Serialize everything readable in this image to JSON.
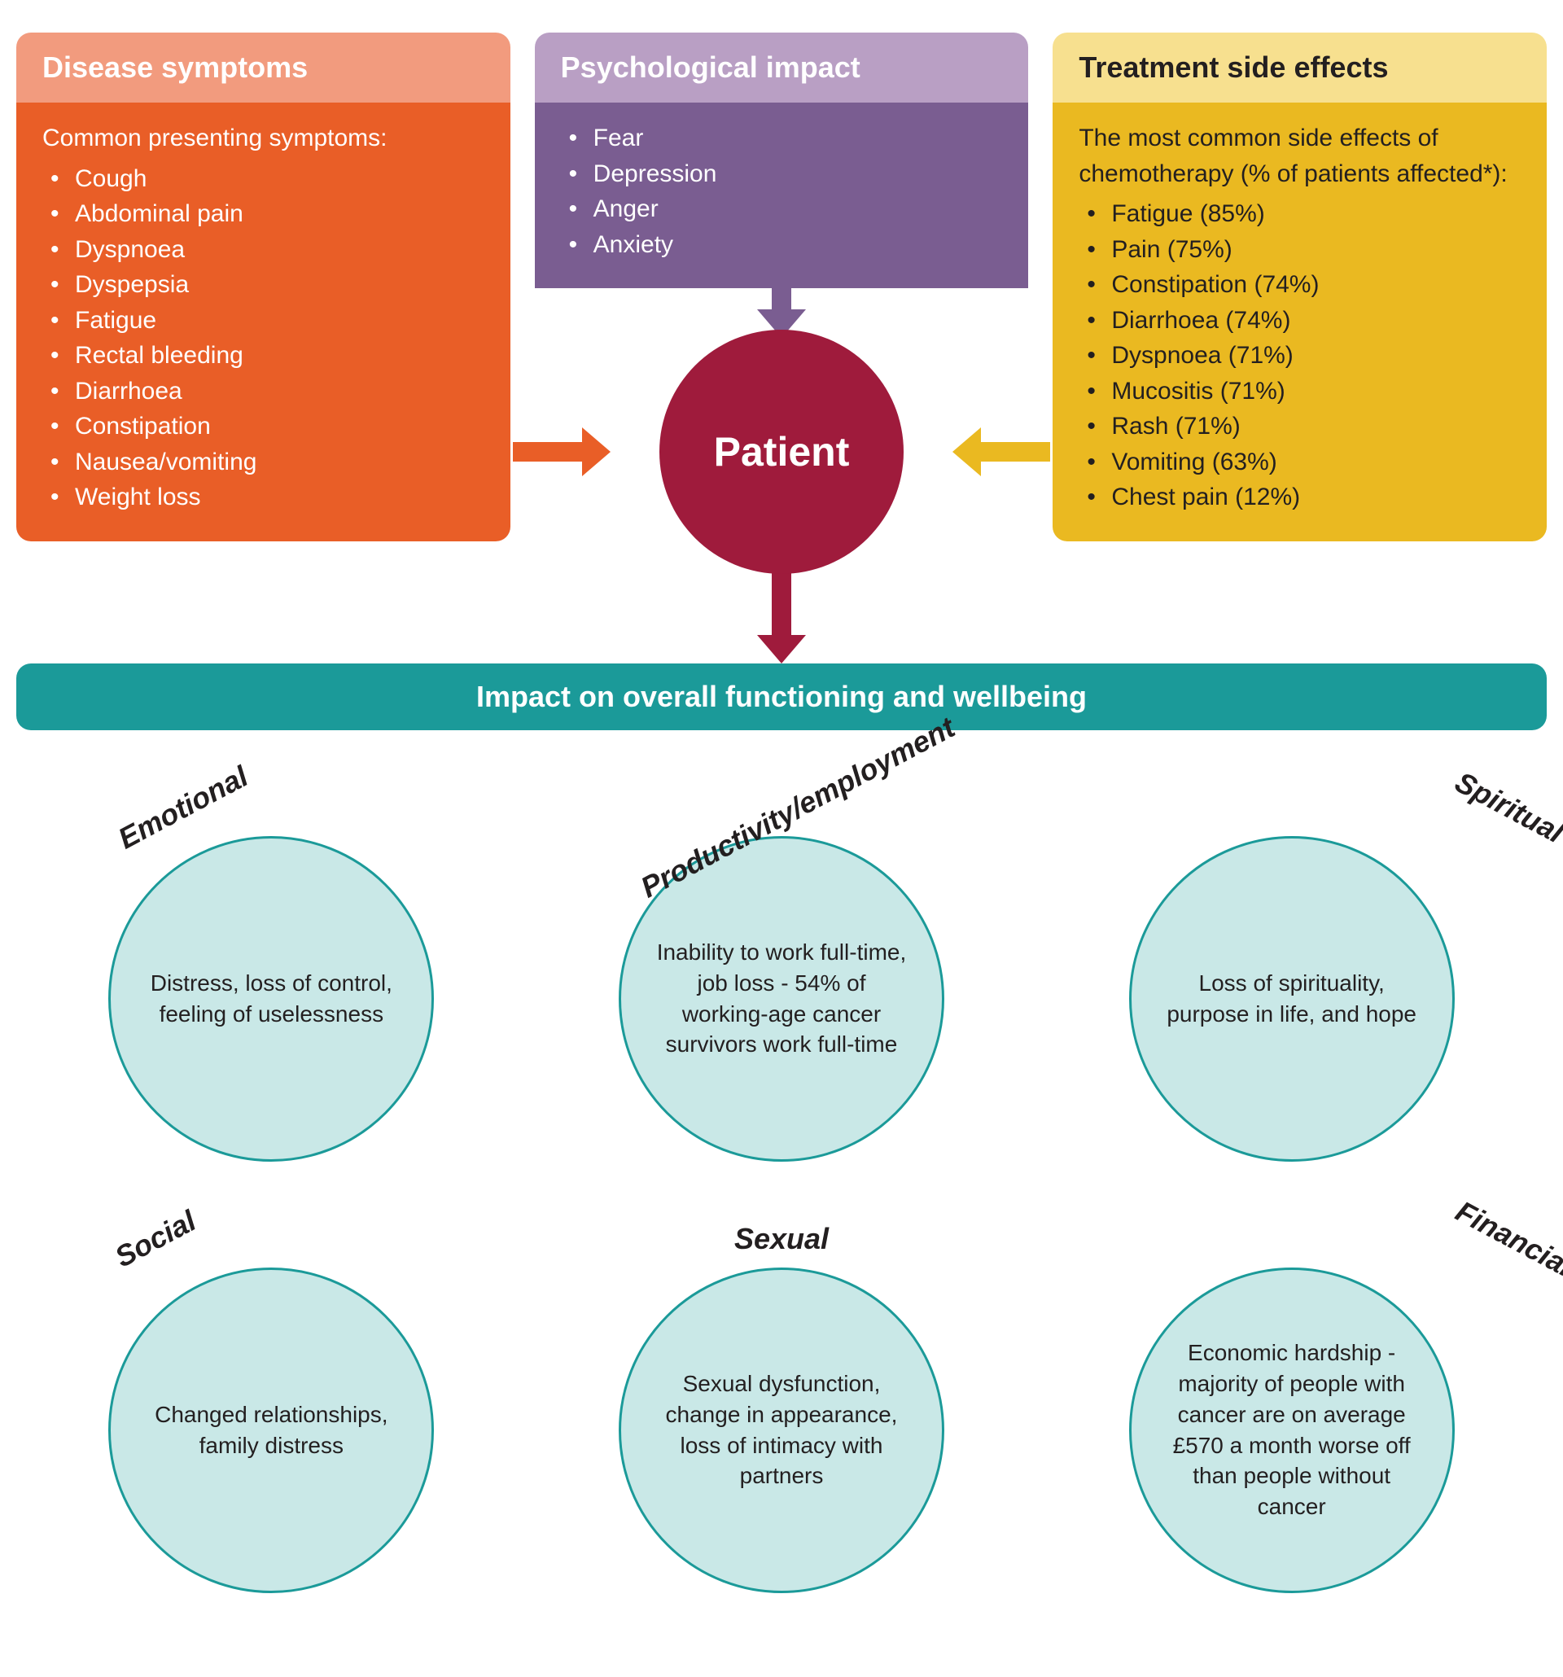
{
  "colors": {
    "card1_header": "#f29b7e",
    "card1_body": "#e95e27",
    "card2_header": "#b99fc4",
    "card2_body": "#7a5d91",
    "card3_header": "#f7e08f",
    "card3_body": "#eab921",
    "card3_text": "#231f20",
    "patient_circle": "#9f1b3c",
    "impact_bar": "#1b9a99",
    "circle_fill": "#c9e8e7",
    "circle_border": "#1b9a99",
    "arrow_down_patient": "#9f1b3c"
  },
  "cards": {
    "symptoms": {
      "title": "Disease symptoms",
      "intro": "Common presenting symptoms:",
      "items": [
        "Cough",
        "Abdominal pain",
        "Dyspnoea",
        "Dyspepsia",
        "Fatigue",
        "Rectal bleeding",
        "Diarrhoea",
        "Constipation",
        "Nausea/vomiting",
        "Weight loss"
      ]
    },
    "psych": {
      "title": "Psychological impact",
      "items": [
        "Fear",
        "Depression",
        "Anger",
        "Anxiety"
      ]
    },
    "side_effects": {
      "title": "Treatment side effects",
      "intro": "The most common side effects of chemotherapy (% of patients affected*):",
      "items": [
        "Fatigue (85%)",
        "Pain (75%)",
        "Constipation (74%)",
        "Diarrhoea (74%)",
        "Dyspnoea (71%)",
        "Mucositis (71%)",
        "Rash (71%)",
        "Vomiting (63%)",
        "Chest pain (12%)"
      ]
    }
  },
  "center_label": "Patient",
  "impact_title": "Impact on overall functioning and wellbeing",
  "impacts": [
    {
      "label": "Emotional",
      "rot": "left",
      "text": "Distress, loss of control, feeling of uselessness"
    },
    {
      "label": "Productivity/employment",
      "rot": "left",
      "text": "Inability to work full-time, job loss - 54% of working-age cancer survivors work full-time"
    },
    {
      "label": "Spiritual",
      "rot": "right",
      "text": "Loss of spirituality, purpose in life, and hope"
    },
    {
      "label": "Social",
      "rot": "left",
      "text": "Changed relationships, family distress"
    },
    {
      "label": "Sexual",
      "rot": "none",
      "text": "Sexual dysfunction, change in appearance, loss of intimacy with partners"
    },
    {
      "label": "Financial",
      "rot": "right",
      "text": "Economic hardship - majority of people with cancer are on average £570 a month worse off than people without cancer"
    }
  ]
}
